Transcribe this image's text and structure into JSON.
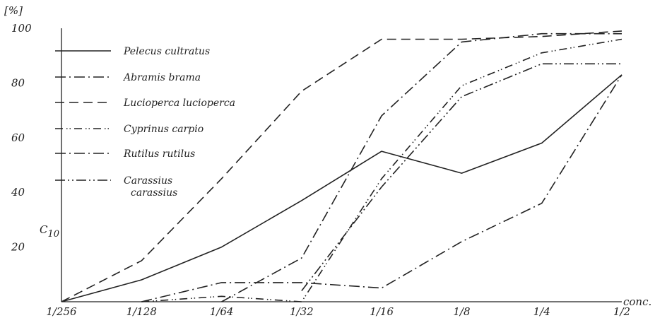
{
  "chart_data": {
    "type": "line",
    "ylabel": "[%]",
    "xlabel": "conc.",
    "annotation": "C",
    "annotation_sub": "10",
    "x": [
      "1/256",
      "1/128",
      "1/64",
      "1/32",
      "1/16",
      "1/8",
      "1/4",
      "1/2"
    ],
    "ylim": [
      0,
      100
    ],
    "yticks": [
      20,
      40,
      60,
      80,
      100
    ],
    "grid": false,
    "legend_position": "top-left",
    "series": [
      {
        "name": "Pelecus cultratus",
        "dash": "solid",
        "values": [
          0,
          8,
          20,
          37,
          55,
          47,
          58,
          83
        ]
      },
      {
        "name": "Abramis brama",
        "dash": "dash-dot-tick",
        "values": [
          null,
          null,
          0,
          16,
          68,
          95,
          98,
          98
        ]
      },
      {
        "name": "Lucioperca lucioperca",
        "dash": "dashed",
        "values": [
          0,
          15,
          45,
          77,
          96,
          96,
          97,
          99
        ]
      },
      {
        "name": "Cyprinus carpio",
        "dash": "dash-double-tick",
        "values": [
          null,
          0,
          2,
          0,
          45,
          79,
          91,
          96
        ]
      },
      {
        "name": "Rutilus rutilus",
        "dash": "dash-dot",
        "values": [
          null,
          0,
          7,
          7,
          5,
          22,
          36,
          83
        ]
      },
      {
        "name": "Carassius carassius",
        "dash": "dash-dot-dot",
        "values": [
          null,
          null,
          null,
          4,
          42,
          75,
          87,
          87
        ]
      }
    ]
  }
}
